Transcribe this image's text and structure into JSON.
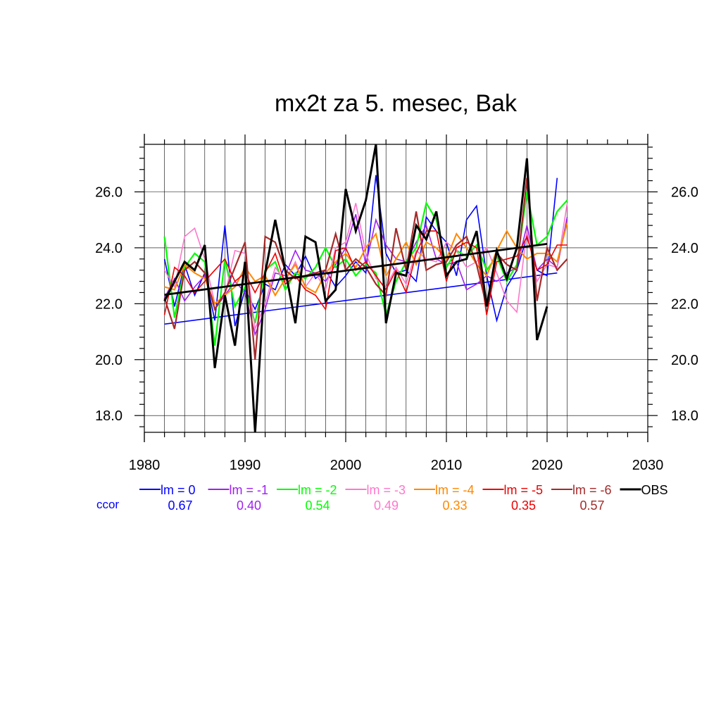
{
  "chart_data": {
    "type": "line",
    "title": "mx2t za 5. mesec, Bak",
    "xlim": [
      1980,
      2030
    ],
    "ylim": [
      17.4,
      27.7
    ],
    "x_ticks": [
      1980,
      1990,
      2000,
      2010,
      2020,
      2030
    ],
    "x_tick_labels": [
      "1980",
      "1990",
      "2000",
      "2010",
      "2020",
      "2030"
    ],
    "y_ticks": [
      18,
      20,
      22,
      24,
      26
    ],
    "y_tick_labels": [
      "18.0",
      "20.0",
      "22.0",
      "24.0",
      "26.0"
    ],
    "grid": true,
    "ccor_label": "ccor",
    "ccor_color": "#0000ff",
    "series": [
      {
        "name": "lm = 0",
        "color": "#0000ff",
        "width": 1.6,
        "ccor": "0.67",
        "x": [
          1982,
          1983,
          1984,
          1985,
          1986,
          1987,
          1988,
          1989,
          1990,
          1991,
          1992,
          1993,
          1994,
          1995,
          1996,
          1997,
          1998,
          1999,
          2000,
          2001,
          2002,
          2003,
          2004,
          2005,
          2006,
          2007,
          2008,
          2009,
          2010,
          2011,
          2012,
          2013,
          2014,
          2015,
          2016,
          2017,
          2018,
          2019,
          2020,
          2021
        ],
        "y": [
          23.6,
          21.9,
          23.4,
          22.3,
          23.1,
          21.4,
          24.8,
          21.2,
          22.5,
          21.8,
          22.7,
          22.5,
          23.4,
          23.0,
          23.7,
          22.9,
          23.2,
          22.6,
          23.0,
          23.5,
          23.1,
          26.6,
          23.8,
          23.1,
          23.2,
          22.8,
          25.1,
          24.6,
          24.2,
          23.0,
          25.0,
          25.5,
          23.0,
          21.4,
          22.6,
          23.2,
          24.4,
          23.2,
          23.0,
          26.5
        ],
        "trend": [
          [
            1982,
            21.27
          ],
          [
            2021,
            23.1
          ]
        ]
      },
      {
        "name": "lm = -1",
        "color": "#a020f0",
        "width": 1.6,
        "ccor": "0.40",
        "x": [
          1982,
          1983,
          1984,
          1985,
          1986,
          1987,
          1988,
          1989,
          1990,
          1991,
          1992,
          1993,
          1994,
          1995,
          1996,
          1997,
          1998,
          1999,
          2000,
          2001,
          2002,
          2003,
          2004,
          2005,
          2006,
          2007,
          2008,
          2009,
          2010,
          2011,
          2012,
          2013,
          2014,
          2015,
          2016,
          2017,
          2018,
          2019,
          2020,
          2021,
          2022
        ],
        "y": [
          22.2,
          22.9,
          22.1,
          22.6,
          23.0,
          21.8,
          22.3,
          22.8,
          22.4,
          20.9,
          21.8,
          23.1,
          23.0,
          23.9,
          23.2,
          23.1,
          22.8,
          23.4,
          24.0,
          25.2,
          23.4,
          25.0,
          24.1,
          23.6,
          23.5,
          24.2,
          24.8,
          23.6,
          23.4,
          23.5,
          22.5,
          22.7,
          23.0,
          22.8,
          23.1,
          23.3,
          24.8,
          23.2,
          23.6,
          23.3,
          25.1
        ]
      },
      {
        "name": "lm = -2",
        "color": "#00ff00",
        "width": 2.2,
        "ccor": "0.54",
        "x": [
          1982,
          1983,
          1984,
          1985,
          1986,
          1987,
          1988,
          1989,
          1990,
          1991,
          1992,
          1993,
          1994,
          1995,
          1996,
          1997,
          1998,
          1999,
          2000,
          2001,
          2002,
          2003,
          2004,
          2005,
          2006,
          2007,
          2008,
          2009,
          2010,
          2011,
          2012,
          2013,
          2014,
          2015,
          2016,
          2017,
          2018,
          2019,
          2020,
          2021,
          2022
        ],
        "y": [
          24.4,
          21.5,
          23.3,
          23.8,
          23.5,
          20.5,
          23.6,
          21.9,
          22.6,
          21.3,
          23.2,
          23.5,
          22.5,
          23.1,
          22.9,
          23.3,
          24.0,
          23.3,
          23.6,
          23.0,
          23.4,
          23.1,
          21.6,
          22.8,
          23.5,
          24.0,
          25.6,
          25.0,
          23.3,
          23.9,
          23.7,
          24.1,
          23.2,
          23.7,
          22.8,
          23.4,
          26.0,
          24.1,
          24.4,
          25.3,
          25.7
        ]
      },
      {
        "name": "lm = -3",
        "color": "#ff77cc",
        "width": 1.6,
        "ccor": "0.49",
        "x": [
          1982,
          1983,
          1984,
          1985,
          1986,
          1987,
          1988,
          1989,
          1990,
          1991,
          1992,
          1993,
          1994,
          1995,
          1996,
          1997,
          1998,
          1999,
          2000,
          2001,
          2002,
          2003,
          2004,
          2005,
          2006,
          2007,
          2008,
          2009,
          2010,
          2011,
          2012,
          2013,
          2014,
          2015,
          2016,
          2017,
          2018,
          2019,
          2020,
          2021,
          2022
        ],
        "y": [
          23.2,
          22.6,
          24.4,
          24.7,
          23.6,
          22.0,
          22.3,
          23.9,
          23.8,
          21.1,
          22.0,
          23.3,
          22.8,
          23.5,
          22.6,
          23.1,
          22.5,
          24.0,
          24.2,
          25.6,
          23.8,
          22.9,
          22.6,
          23.3,
          22.7,
          23.9,
          23.6,
          23.5,
          24.2,
          23.9,
          23.3,
          23.5,
          24.0,
          23.1,
          22.1,
          21.7,
          24.6,
          22.8,
          23.4,
          23.3,
          25.6
        ]
      },
      {
        "name": "lm = -4",
        "color": "#ff8800",
        "width": 2.0,
        "ccor": "0.33",
        "x": [
          1982,
          1983,
          1984,
          1985,
          1986,
          1987,
          1988,
          1989,
          1990,
          1991,
          1992,
          1993,
          1994,
          1995,
          1996,
          1997,
          1998,
          1999,
          2000,
          2001,
          2002,
          2003,
          2004,
          2005,
          2006,
          2007,
          2008,
          2009,
          2010,
          2011,
          2012,
          2013,
          2014,
          2015,
          2016,
          2017,
          2018,
          2019,
          2020,
          2021,
          2022
        ],
        "y": [
          22.6,
          22.5,
          23.4,
          23.1,
          22.9,
          22.0,
          22.3,
          22.6,
          23.3,
          22.8,
          23.0,
          22.3,
          22.9,
          23.4,
          22.6,
          22.4,
          23.1,
          23.5,
          23.8,
          23.3,
          24.0,
          24.5,
          23.0,
          23.6,
          24.2,
          23.4,
          24.2,
          24.0,
          23.6,
          24.5,
          24.0,
          23.4,
          23.0,
          23.9,
          24.6,
          24.0,
          23.6,
          23.8,
          23.8,
          23.5,
          24.9
        ]
      },
      {
        "name": "lm = -5",
        "color": "#ee0000",
        "width": 1.6,
        "ccor": "0.35",
        "x": [
          1982,
          1983,
          1984,
          1985,
          1986,
          1987,
          1988,
          1989,
          1990,
          1991,
          1992,
          1993,
          1994,
          1995,
          1996,
          1997,
          1998,
          1999,
          2000,
          2001,
          2002,
          2003,
          2004,
          2005,
          2006,
          2007,
          2008,
          2009,
          2010,
          2011,
          2012,
          2013,
          2014,
          2015,
          2016,
          2017,
          2018,
          2019,
          2020,
          2021,
          2022
        ],
        "y": [
          21.6,
          23.3,
          23.0,
          22.4,
          22.8,
          23.2,
          23.6,
          22.8,
          23.1,
          22.4,
          23.1,
          23.8,
          22.7,
          23.0,
          22.5,
          22.3,
          21.8,
          23.9,
          24.0,
          23.2,
          23.5,
          23.0,
          22.5,
          23.2,
          22.4,
          23.8,
          24.6,
          24.6,
          22.8,
          24.0,
          24.2,
          24.0,
          21.6,
          23.5,
          23.6,
          23.7,
          24.4,
          23.2,
          23.4,
          24.1,
          24.1
        ]
      },
      {
        "name": "lm = -6",
        "color": "#a52a2a",
        "width": 2.2,
        "ccor": "0.57",
        "x": [
          1982,
          1983,
          1984,
          1985,
          1986,
          1987,
          1988,
          1989,
          1990,
          1991,
          1992,
          1993,
          1994,
          1995,
          1996,
          1997,
          1998,
          1999,
          2000,
          2001,
          2002,
          2003,
          2004,
          2005,
          2006,
          2007,
          2008,
          2009,
          2010,
          2011,
          2012,
          2013,
          2014,
          2015,
          2016,
          2017,
          2018,
          2019,
          2020,
          2021,
          2022
        ],
        "y": [
          22.2,
          21.1,
          23.2,
          23.5,
          23.1,
          21.8,
          22.4,
          23.3,
          24.2,
          20.0,
          24.4,
          24.2,
          23.2,
          22.9,
          23.0,
          23.1,
          23.2,
          24.5,
          23.2,
          23.6,
          23.3,
          22.7,
          22.3,
          24.7,
          23.2,
          25.3,
          23.2,
          23.4,
          23.5,
          24.1,
          24.4,
          23.4,
          21.9,
          23.8,
          23.4,
          23.2,
          26.5,
          22.1,
          24.0,
          23.2,
          23.6
        ]
      },
      {
        "name": "OBS",
        "color": "#000000",
        "width": 3.0,
        "x": [
          1982,
          1983,
          1984,
          1985,
          1986,
          1987,
          1988,
          1989,
          1990,
          1991,
          1992,
          1993,
          1994,
          1995,
          1996,
          1997,
          1998,
          1999,
          2000,
          2001,
          2002,
          2003,
          2004,
          2005,
          2006,
          2007,
          2008,
          2009,
          2010,
          2011,
          2012,
          2013,
          2014,
          2015,
          2016,
          2017,
          2018,
          2019,
          2020
        ],
        "y": [
          22.1,
          22.8,
          23.5,
          23.2,
          24.1,
          19.7,
          22.3,
          20.5,
          23.5,
          17.4,
          23.1,
          25.0,
          23.2,
          21.3,
          24.4,
          24.2,
          22.1,
          22.5,
          26.1,
          24.6,
          25.7,
          27.7,
          21.3,
          23.1,
          23.0,
          24.8,
          24.3,
          25.3,
          23.0,
          23.5,
          23.6,
          24.6,
          21.9,
          23.9,
          22.9,
          24.0,
          27.2,
          20.7,
          21.9
        ],
        "trend": [
          [
            1982,
            22.32
          ],
          [
            2020,
            24.14
          ]
        ]
      }
    ]
  }
}
